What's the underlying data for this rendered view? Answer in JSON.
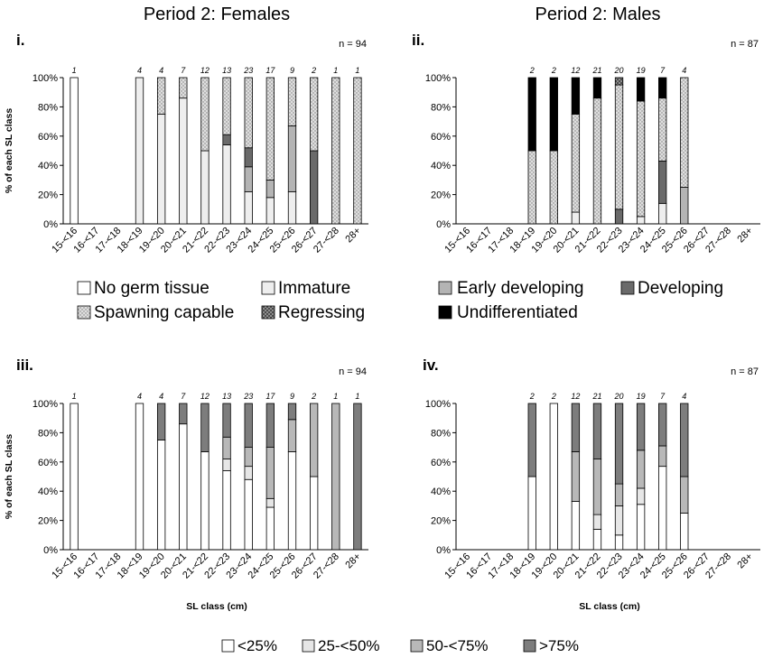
{
  "titles": {
    "females": "Period 2: Females",
    "males": "Period 2: Males"
  },
  "categories": [
    "15-<16",
    "16-<17",
    "17-<18",
    "18-<19",
    "19-<20",
    "20-<21",
    "21-<22",
    "22-<23",
    "23-<24",
    "24-<25",
    "25-<26",
    "26-<27",
    "27-<28",
    "28+"
  ],
  "ylabel": "% of each SL class",
  "xlabel": "SL class  (cm)",
  "yticks": [
    "0%",
    "20%",
    "40%",
    "60%",
    "80%",
    "100%"
  ],
  "legend_top": {
    "females": [
      "No germ tissue",
      "Immature",
      "Spawning capable",
      "Regressing"
    ],
    "males": [
      "Early developing",
      "Developing",
      "Undifferentiated"
    ]
  },
  "legend_bottom": [
    "<25%",
    "25-<50%",
    "50-<75%",
    ">75%"
  ],
  "colors": {
    "no_germ": "#ffffff",
    "immature": "#eeeeee",
    "spawning": "#dddddd",
    "regressing": "#9a9a9a",
    "early": "#b4b4b4",
    "developing": "#6a6a6a",
    "undiff": "#000000",
    "lt25": "#ffffff",
    "p25_50": "#e6e6e6",
    "p50_75": "#b8b8b8",
    "gt75": "#7d7d7d"
  },
  "chart_data": [
    {
      "panel": "i.",
      "type": "bar",
      "stacked": true,
      "n_label": "n = 94",
      "counts": [
        "1",
        "",
        "",
        "4",
        "4",
        "7",
        "12",
        "13",
        "23",
        "17",
        "9",
        "2",
        "1",
        "1"
      ],
      "series": [
        {
          "name": "No germ tissue",
          "color": "no_germ",
          "values": [
            100,
            0,
            0,
            0,
            0,
            0,
            0,
            0,
            0,
            0,
            0,
            0,
            0,
            0
          ]
        },
        {
          "name": "Immature",
          "color": "immature",
          "values": [
            0,
            0,
            0,
            100,
            75,
            86,
            50,
            54,
            22,
            18,
            22,
            0,
            0,
            0
          ]
        },
        {
          "name": "Early developing",
          "color": "early",
          "values": [
            0,
            0,
            0,
            0,
            0,
            0,
            0,
            0,
            17,
            12,
            45,
            0,
            0,
            0
          ]
        },
        {
          "name": "Developing",
          "color": "developing",
          "values": [
            0,
            0,
            0,
            0,
            0,
            0,
            0,
            7,
            13,
            0,
            0,
            50,
            0,
            0
          ]
        },
        {
          "name": "Spawning capable",
          "color": "spawning",
          "values": [
            0,
            0,
            0,
            0,
            25,
            14,
            50,
            39,
            48,
            70,
            33,
            50,
            100,
            100
          ]
        }
      ],
      "ylim": [
        0,
        100
      ]
    },
    {
      "panel": "ii.",
      "type": "bar",
      "stacked": true,
      "n_label": "n = 87",
      "counts": [
        "",
        "",
        "",
        "2",
        "2",
        "12",
        "21",
        "20",
        "19",
        "7",
        "4",
        "",
        "",
        ""
      ],
      "series": [
        {
          "name": "Immature",
          "color": "immature",
          "values": [
            0,
            0,
            0,
            0,
            0,
            8,
            0,
            0,
            5,
            14,
            0,
            0,
            0,
            0
          ]
        },
        {
          "name": "Early developing",
          "color": "early",
          "values": [
            0,
            0,
            0,
            0,
            0,
            0,
            0,
            0,
            0,
            0,
            25,
            0,
            0,
            0
          ]
        },
        {
          "name": "Developing",
          "color": "developing",
          "values": [
            0,
            0,
            0,
            0,
            0,
            0,
            0,
            10,
            0,
            29,
            0,
            0,
            0,
            0
          ]
        },
        {
          "name": "Spawning capable",
          "color": "spawning",
          "values": [
            0,
            0,
            0,
            50,
            50,
            67,
            86,
            85,
            79,
            43,
            75,
            0,
            0,
            0
          ]
        },
        {
          "name": "Regressing",
          "color": "regressing",
          "values": [
            0,
            0,
            0,
            0,
            0,
            0,
            0,
            5,
            0,
            0,
            0,
            0,
            0,
            0
          ]
        },
        {
          "name": "Undifferentiated",
          "color": "undiff",
          "values": [
            0,
            0,
            0,
            50,
            50,
            25,
            14,
            0,
            16,
            14,
            0,
            0,
            0,
            0
          ]
        }
      ],
      "ylim": [
        0,
        100
      ]
    },
    {
      "panel": "iii.",
      "type": "bar",
      "stacked": true,
      "n_label": "n = 94",
      "counts": [
        "1",
        "",
        "",
        "4",
        "4",
        "7",
        "12",
        "13",
        "23",
        "17",
        "9",
        "2",
        "1",
        "1"
      ],
      "series": [
        {
          "name": "<25%",
          "color": "lt25",
          "values": [
            100,
            0,
            0,
            100,
            75,
            86,
            67,
            54,
            48,
            29,
            67,
            50,
            0,
            0
          ]
        },
        {
          "name": "25-<50%",
          "color": "p25_50",
          "values": [
            0,
            0,
            0,
            0,
            0,
            0,
            0,
            8,
            9,
            6,
            0,
            0,
            0,
            0
          ]
        },
        {
          "name": "50-<75%",
          "color": "p50_75",
          "values": [
            0,
            0,
            0,
            0,
            0,
            0,
            0,
            15,
            13,
            35,
            22,
            50,
            100,
            0
          ]
        },
        {
          "name": ">75%",
          "color": "gt75",
          "values": [
            0,
            0,
            0,
            0,
            25,
            14,
            33,
            23,
            30,
            30,
            11,
            0,
            0,
            100
          ]
        }
      ],
      "ylim": [
        0,
        100
      ]
    },
    {
      "panel": "iv.",
      "type": "bar",
      "stacked": true,
      "n_label": "n = 87",
      "counts": [
        "",
        "",
        "",
        "2",
        "2",
        "12",
        "21",
        "20",
        "19",
        "7",
        "4",
        "",
        "",
        ""
      ],
      "series": [
        {
          "name": "<25%",
          "color": "lt25",
          "values": [
            0,
            0,
            0,
            50,
            100,
            33,
            14,
            10,
            31,
            57,
            25,
            0,
            0,
            0
          ]
        },
        {
          "name": "25-<50%",
          "color": "p25_50",
          "values": [
            0,
            0,
            0,
            0,
            0,
            0,
            10,
            20,
            11,
            0,
            0,
            0,
            0,
            0
          ]
        },
        {
          "name": "50-<75%",
          "color": "p50_75",
          "values": [
            0,
            0,
            0,
            0,
            0,
            34,
            38,
            15,
            26,
            14,
            25,
            0,
            0,
            0
          ]
        },
        {
          "name": ">75%",
          "color": "gt75",
          "values": [
            0,
            0,
            0,
            50,
            0,
            33,
            38,
            55,
            32,
            29,
            50,
            0,
            0,
            0
          ]
        }
      ],
      "ylim": [
        0,
        100
      ]
    }
  ]
}
